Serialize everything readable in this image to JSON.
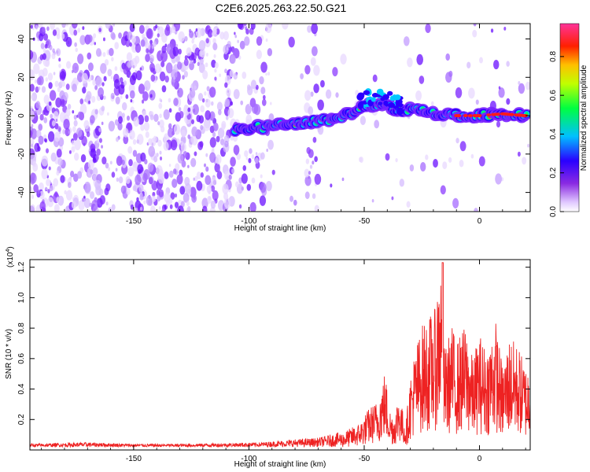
{
  "title": "C2E6.2025.263.22.50.G21",
  "chart_data": [
    {
      "type": "heatmap",
      "title": "C2E6.2025.263.22.50.G21",
      "xlabel": "Height of straight line (km)",
      "ylabel": "Frequency (Hz)",
      "xlim": [
        -195,
        22
      ],
      "ylim": [
        -50,
        48
      ],
      "xticks": [
        "-150",
        "-100",
        "-50",
        "0"
      ],
      "xtick_values": [
        -150,
        -100,
        -50,
        0
      ],
      "yticks": [
        "40",
        "20",
        "0",
        "-20",
        "-40"
      ],
      "ytick_values": [
        40,
        20,
        0,
        -20,
        -40
      ],
      "colorbar": {
        "label": "Normalized spectral amplitude",
        "ticks": [
          "0.0",
          "0.2",
          "0.4",
          "0.6",
          "0.8"
        ],
        "tick_values": [
          0.0,
          0.2,
          0.4,
          0.6,
          0.8
        ],
        "range": [
          0,
          0.97
        ],
        "colors": [
          "#ffffff",
          "#cc99ff",
          "#6600ff",
          "#0000ff",
          "#00ccff",
          "#00ff66",
          "#ffff00",
          "#ff6600",
          "#ff0033",
          "#ff33aa"
        ]
      },
      "ridge": {
        "description_points_x": [
          -106,
          -95,
          -85,
          -75,
          -65,
          -55,
          -50,
          -45,
          -40,
          -35,
          -30,
          -25,
          -20,
          -10,
          0,
          10,
          20
        ],
        "description_points_y": [
          -7,
          -6,
          -5,
          -4,
          -2,
          2,
          5,
          6,
          5,
          2,
          4,
          3,
          1,
          0,
          0,
          1,
          0
        ]
      }
    },
    {
      "type": "line",
      "title": "",
      "xlabel": "Height of straight line (km)",
      "ylabel": "SNR (10 * v/v)",
      "scale_label": "(x10",
      "scale_exponent": "4",
      "scale_suffix": ")",
      "xlim": [
        -195,
        22
      ],
      "ylim": [
        0,
        1.25
      ],
      "xticks": [
        "-150",
        "-100",
        "-50",
        "0"
      ],
      "xtick_values": [
        -150,
        -100,
        -50,
        0
      ],
      "yticks": [
        "1.2",
        "1.0",
        "0.8",
        "0.6",
        "0.4",
        "0.2"
      ],
      "ytick_values": [
        1.2,
        1.0,
        0.8,
        0.6,
        0.4,
        0.2
      ],
      "line_color": "#ee2222",
      "series": [
        {
          "name": "SNR",
          "x": [
            -195,
            -170,
            -150,
            -130,
            -110,
            -95,
            -80,
            -70,
            -60,
            -52,
            -48,
            -44,
            -41,
            -39,
            -37,
            -35,
            -32,
            -30,
            -28,
            -25,
            -22,
            -19,
            -17,
            -16,
            -15,
            -12,
            -10,
            -6,
            -3,
            0,
            3,
            7,
            10,
            13,
            17,
            20,
            22
          ],
          "values": [
            0.02,
            0.03,
            0.02,
            0.02,
            0.025,
            0.03,
            0.05,
            0.06,
            0.1,
            0.16,
            0.25,
            0.3,
            0.48,
            0.25,
            0.2,
            0.35,
            0.15,
            0.45,
            0.6,
            0.75,
            0.8,
            0.85,
            1.23,
            0.7,
            0.6,
            0.75,
            0.65,
            0.75,
            0.55,
            0.7,
            0.6,
            0.78,
            0.5,
            0.68,
            0.62,
            0.5,
            0.52
          ]
        }
      ]
    }
  ]
}
